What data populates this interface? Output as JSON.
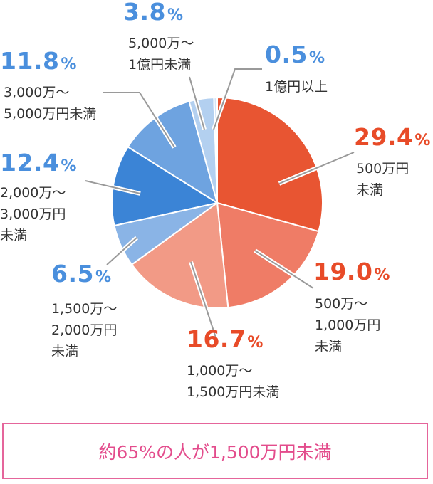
{
  "chart_data": {
    "type": "pie",
    "title": "",
    "slices": [
      {
        "label_lines": [
          "500万円",
          "未満"
        ],
        "value": 29.4,
        "value_text": "29.4",
        "color": "#e85532"
      },
      {
        "label_lines": [
          "500万〜",
          "1,000万円",
          "未満"
        ],
        "value": 19.0,
        "value_text": "19.0",
        "color": "#ef7c66"
      },
      {
        "label_lines": [
          "1,000万〜",
          "1,500万円未満"
        ],
        "value": 16.7,
        "value_text": "16.7",
        "color": "#f29a86"
      },
      {
        "label_lines": [
          "1,500万〜",
          "2,000万円",
          "未満"
        ],
        "value": 6.5,
        "value_text": "6.5",
        "color": "#8ab4e6"
      },
      {
        "label_lines": [
          "2,000万〜",
          "3,000万円",
          "未満"
        ],
        "value": 12.4,
        "value_text": "12.4",
        "color": "#3b84d6"
      },
      {
        "label_lines": [
          "3,000万〜",
          "5,000万円未満"
        ],
        "value": 11.8,
        "value_text": "11.8",
        "color": "#6ea3e0"
      },
      {
        "label_lines": [
          "5,000万〜",
          "1億円未満"
        ],
        "value": 3.8,
        "value_text": "3.8",
        "color": "#b3d0f0"
      },
      {
        "label_lines": [
          "1億円以上"
        ],
        "value": 0.5,
        "value_text": "0.5",
        "color": "#d3e4f7"
      }
    ],
    "percent_sign": "%",
    "value_color_warm": "#e84b28",
    "value_color_cool": "#4a8fdd"
  },
  "footer": {
    "text": "約65%の人が1,500万円未満"
  }
}
